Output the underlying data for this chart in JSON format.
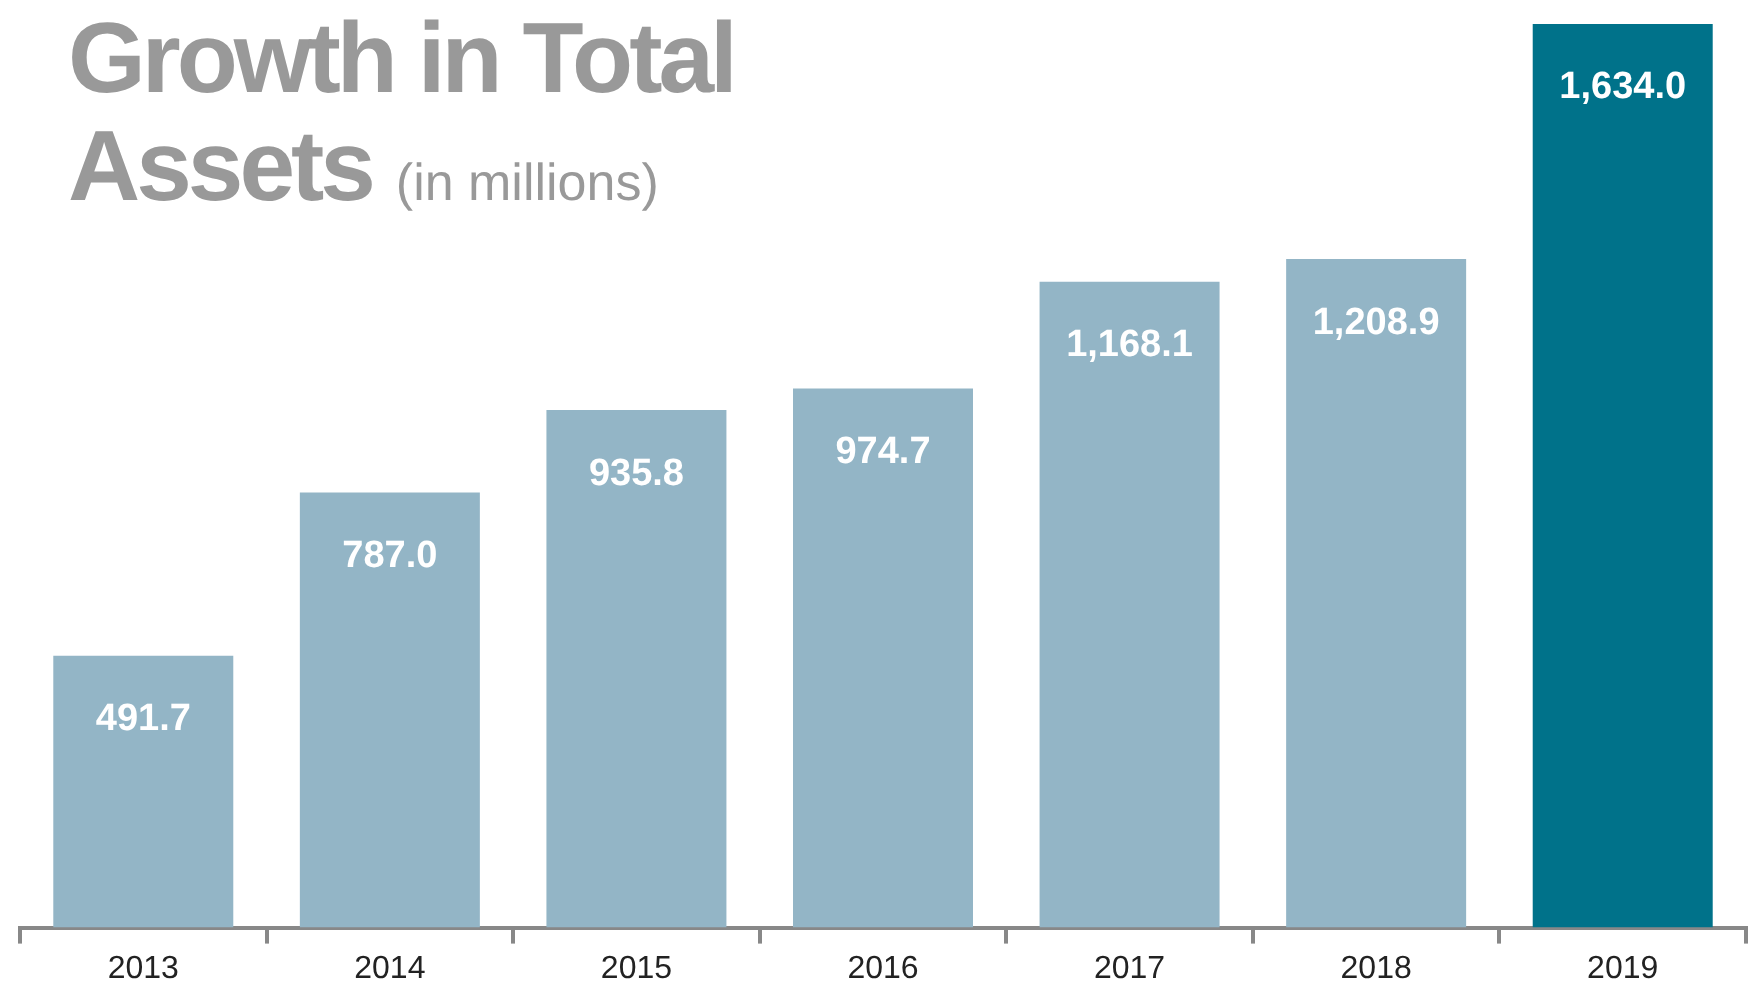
{
  "chart_data": {
    "type": "bar",
    "title": "Growth in Total Assets",
    "subtitle": "(in millions)",
    "categories": [
      "2013",
      "2014",
      "2015",
      "2016",
      "2017",
      "2018",
      "2019"
    ],
    "values": [
      491.7,
      787.0,
      935.8,
      974.7,
      1168.1,
      1208.9,
      1634.0
    ],
    "value_labels": [
      "491.7",
      "787.0",
      "935.8",
      "974.7",
      "1,168.1",
      "1,208.9",
      "1,634.0"
    ],
    "colors": [
      "#93b5c6",
      "#93b5c6",
      "#93b5c6",
      "#93b5c6",
      "#93b5c6",
      "#93b5c6",
      "#00728a"
    ],
    "relative": false,
    "grid": false,
    "legend": false
  }
}
